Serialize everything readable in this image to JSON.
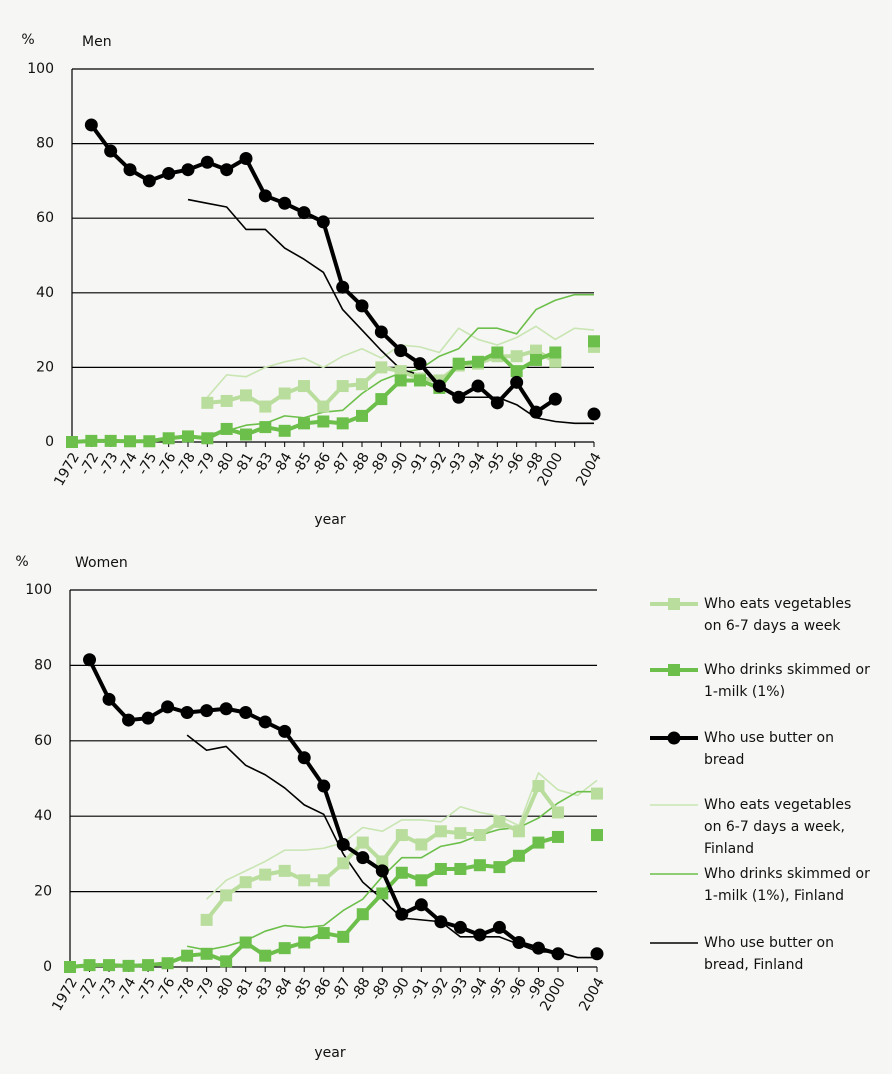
{
  "chart_data": [
    {
      "type": "line",
      "title": "Men",
      "y_label": "%",
      "x_label": "year",
      "categories": [
        "1972",
        "-72",
        "-73",
        "-74",
        "-75",
        "-76",
        "-78",
        "-79",
        "-80",
        "-81",
        "-83",
        "-84",
        "-85",
        "-86",
        "-87",
        "-88",
        "-89",
        "-90",
        "-91",
        "-92",
        "-93",
        "-94",
        "-95",
        "-96",
        "-98",
        "2000",
        null,
        "2004"
      ],
      "ylim": [
        0,
        100
      ],
      "yticks": [
        0,
        20,
        40,
        60,
        80,
        100
      ],
      "grid": true,
      "series": [
        {
          "color": "#b9dd9c",
          "marker": "square",
          "values": [
            null,
            null,
            null,
            null,
            null,
            null,
            null,
            10.5,
            11,
            12.5,
            9.5,
            13,
            15,
            9.5,
            15,
            15.5,
            20,
            19,
            17,
            16.5,
            20.5,
            21,
            23,
            23,
            24.5,
            21.5,
            null,
            25.5
          ]
        },
        {
          "color": "#6cbf4a",
          "marker": "square",
          "values": [
            0,
            0.3,
            0.3,
            0.2,
            0.2,
            1,
            1.5,
            1,
            3.5,
            2,
            4,
            3,
            5,
            5.5,
            5,
            7,
            11.5,
            16.5,
            16.5,
            14.5,
            21,
            21.5,
            24,
            19,
            22,
            24,
            null,
            27
          ]
        },
        {
          "color": "#000000",
          "marker": "circle",
          "values": [
            null,
            85,
            78,
            73,
            70,
            72,
            73,
            75,
            73,
            76,
            66,
            64,
            61.5,
            59,
            41.5,
            36.5,
            29.5,
            24.5,
            21,
            15,
            12,
            15,
            10.5,
            16,
            8,
            11.5,
            null,
            7.5
          ]
        },
        {
          "color": "#c8e5b2",
          "marker": "none",
          "values": [
            null,
            null,
            null,
            null,
            null,
            null,
            null,
            12,
            18,
            17.5,
            20,
            21.5,
            22.5,
            20,
            23,
            25,
            22.5,
            26,
            25.5,
            24,
            30.5,
            27.5,
            26,
            28,
            31,
            27.5,
            30.5,
            30
          ]
        },
        {
          "color": "#6cbf4a",
          "marker": "none",
          "values": [
            null,
            null,
            null,
            null,
            null,
            null,
            null,
            2,
            3,
            4.5,
            5,
            7,
            6.5,
            8,
            8.5,
            13,
            16.5,
            18.5,
            19.5,
            23,
            25,
            30.5,
            30.5,
            29,
            35.5,
            38,
            39.5,
            39.5
          ]
        },
        {
          "color": "#000000",
          "marker": "none",
          "values": [
            null,
            null,
            null,
            null,
            null,
            null,
            65,
            64,
            63,
            57,
            57,
            52,
            49,
            45.5,
            35.5,
            30,
            24.5,
            19.5,
            18,
            15.5,
            12,
            12,
            12,
            10,
            6.5,
            5.5,
            5,
            5
          ]
        }
      ]
    },
    {
      "type": "line",
      "title": "Women",
      "y_label": "%",
      "x_label": "year",
      "categories": [
        "1972",
        "-72",
        "-73",
        "-74",
        "-75",
        "-76",
        "-78",
        "-79",
        "-80",
        "-81",
        "-83",
        "-84",
        "-85",
        "-86",
        "-87",
        "-88",
        "-89",
        "-90",
        "-91",
        "-92",
        "-93",
        "-94",
        "-95",
        "-96",
        "-98",
        "2000",
        null,
        "2004"
      ],
      "ylim": [
        0,
        100
      ],
      "yticks": [
        0,
        20,
        40,
        60,
        80,
        100
      ],
      "grid": true,
      "series": [
        {
          "name": "Who eats vegetables\non 6-7 days a week",
          "color": "#b9dd9c",
          "marker": "square",
          "values": [
            null,
            null,
            null,
            null,
            null,
            null,
            null,
            12.5,
            19,
            22.5,
            24.5,
            25.5,
            23,
            23,
            27.5,
            33,
            28,
            35,
            32.5,
            36,
            35.5,
            35,
            38.5,
            36,
            48,
            41,
            null,
            46
          ]
        },
        {
          "name": "Who drinks skimmed or\n1-milk (1%)",
          "color": "#6cbf4a",
          "marker": "square",
          "values": [
            0,
            0.5,
            0.5,
            0.3,
            0.5,
            1,
            3,
            3.5,
            1.5,
            6.5,
            3,
            5,
            6.5,
            9,
            8,
            14,
            19.5,
            25,
            23,
            26,
            26,
            27,
            26.5,
            29.5,
            33,
            34.5,
            null,
            35
          ]
        },
        {
          "name": "Who use butter on\nbread",
          "color": "#000000",
          "marker": "circle",
          "values": [
            null,
            81.5,
            71,
            65.5,
            66,
            69,
            67.5,
            68,
            68.5,
            67.5,
            65,
            62.5,
            55.5,
            48,
            32.5,
            29,
            25.5,
            14,
            16.5,
            12,
            10.5,
            8.5,
            10.5,
            6.5,
            5,
            3.5,
            null,
            3.5
          ]
        },
        {
          "name": "Who eats vegetables\non 6-7 days a week,\nFinland",
          "color": "#c8e5b2",
          "marker": "none",
          "values": [
            null,
            null,
            null,
            null,
            null,
            null,
            null,
            18,
            23,
            25.5,
            28,
            31,
            31,
            31.5,
            33,
            37,
            36,
            39,
            39,
            38.5,
            42.5,
            41,
            40,
            37.5,
            51.5,
            47,
            45.5,
            49.5
          ]
        },
        {
          "name": "Who drinks skimmed or\n1-milk (1%), Finland",
          "color": "#6cbf4a",
          "marker": "none",
          "values": [
            null,
            null,
            null,
            null,
            null,
            null,
            5.5,
            4.5,
            5.5,
            7,
            9.5,
            11,
            10.5,
            11,
            15,
            18,
            24,
            29,
            29,
            32,
            33,
            35,
            36.5,
            37,
            39.5,
            43.5,
            46.5,
            46.5
          ]
        },
        {
          "name": "Who use butter on\nbread, Finland",
          "color": "#000000",
          "marker": "none",
          "values": [
            null,
            null,
            null,
            null,
            null,
            null,
            61.5,
            57.5,
            58.5,
            53.5,
            51,
            47.5,
            43,
            40.5,
            30,
            22.5,
            18,
            13,
            12.5,
            12,
            8,
            8,
            8,
            6,
            4,
            4,
            2.5,
            2.5
          ]
        }
      ]
    }
  ]
}
